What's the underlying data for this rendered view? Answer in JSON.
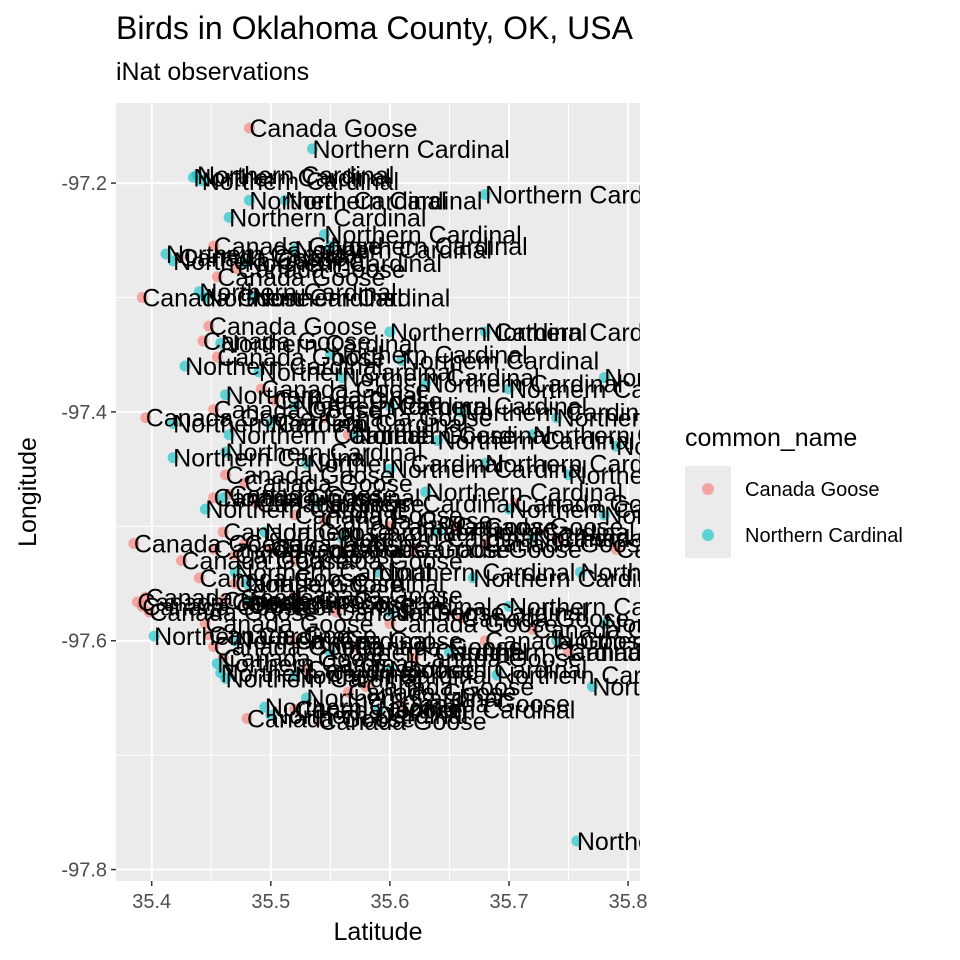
{
  "chart_data": {
    "type": "scatter",
    "title": "Birds in Oklahoma County, OK, USA",
    "subtitle": "iNat observations",
    "xlabel": "Latitude",
    "ylabel": "Longitude",
    "xlim": [
      35.37,
      35.81
    ],
    "ylim": [
      -97.81,
      -97.13
    ],
    "x_ticks": [
      "35.4",
      "35.5",
      "35.6",
      "35.7",
      "35.8"
    ],
    "x_tick_values": [
      35.4,
      35.5,
      35.6,
      35.7,
      35.8
    ],
    "y_ticks": [
      "-97.2",
      "-97.4",
      "-97.6",
      "-97.8"
    ],
    "y_tick_values": [
      -97.2,
      -97.4,
      -97.6,
      -97.8
    ],
    "grid": true,
    "legend": {
      "title": "common_name",
      "placement": "right",
      "entries": [
        {
          "name": "Canada Goose",
          "color": "#F8766D"
        },
        {
          "name": "Northern Cardinal",
          "color": "#00BFC4"
        }
      ]
    },
    "point_label_field": "common_name",
    "series": [
      {
        "name": "Canada Goose",
        "color": "#F8766D",
        "points": [
          [
            35.482,
            -97.152
          ],
          [
            35.452,
            -97.255
          ],
          [
            35.472,
            -97.275
          ],
          [
            35.455,
            -97.282
          ],
          [
            35.423,
            -97.265
          ],
          [
            35.392,
            -97.3
          ],
          [
            35.448,
            -97.325
          ],
          [
            35.443,
            -97.338
          ],
          [
            35.455,
            -97.352
          ],
          [
            35.492,
            -97.38
          ],
          [
            35.503,
            -97.39
          ],
          [
            35.452,
            -97.398
          ],
          [
            35.395,
            -97.405
          ],
          [
            35.545,
            -97.405
          ],
          [
            35.565,
            -97.42
          ],
          [
            35.462,
            -97.455
          ],
          [
            35.478,
            -97.462
          ],
          [
            35.465,
            -97.472
          ],
          [
            35.488,
            -97.48
          ],
          [
            35.452,
            -97.475
          ],
          [
            35.52,
            -97.49
          ],
          [
            35.545,
            -97.495
          ],
          [
            35.6,
            -97.5
          ],
          [
            35.655,
            -97.5
          ],
          [
            35.705,
            -97.48
          ],
          [
            35.46,
            -97.505
          ],
          [
            35.478,
            -97.515
          ],
          [
            35.385,
            -97.515
          ],
          [
            35.452,
            -97.52
          ],
          [
            35.425,
            -97.53
          ],
          [
            35.47,
            -97.525
          ],
          [
            35.5,
            -97.52
          ],
          [
            35.52,
            -97.53
          ],
          [
            35.56,
            -97.52
          ],
          [
            35.62,
            -97.52
          ],
          [
            35.68,
            -97.515
          ],
          [
            35.74,
            -97.51
          ],
          [
            35.79,
            -97.52
          ],
          [
            35.44,
            -97.545
          ],
          [
            35.47,
            -97.55
          ],
          [
            35.52,
            -97.56
          ],
          [
            35.388,
            -97.566
          ],
          [
            35.392,
            -97.57
          ],
          [
            35.395,
            -97.562
          ],
          [
            35.398,
            -97.575
          ],
          [
            35.46,
            -97.565
          ],
          [
            35.48,
            -97.568
          ],
          [
            35.555,
            -97.575
          ],
          [
            35.6,
            -97.585
          ],
          [
            35.66,
            -97.58
          ],
          [
            35.72,
            -97.59
          ],
          [
            35.445,
            -97.585
          ],
          [
            35.448,
            -97.595
          ],
          [
            35.452,
            -97.605
          ],
          [
            35.46,
            -97.615
          ],
          [
            35.52,
            -97.6
          ],
          [
            35.57,
            -97.605
          ],
          [
            35.62,
            -97.615
          ],
          [
            35.68,
            -97.6
          ],
          [
            35.75,
            -97.61
          ],
          [
            35.53,
            -97.625
          ],
          [
            35.58,
            -97.64
          ],
          [
            35.565,
            -97.645
          ],
          [
            35.61,
            -97.655
          ],
          [
            35.52,
            -97.66
          ],
          [
            35.48,
            -97.668
          ],
          [
            35.54,
            -97.67
          ]
        ]
      },
      {
        "name": "Northern Cardinal",
        "color": "#00BFC4",
        "points": [
          [
            35.535,
            -97.17
          ],
          [
            35.438,
            -97.193
          ],
          [
            35.442,
            -97.198
          ],
          [
            35.435,
            -97.195
          ],
          [
            35.68,
            -97.21
          ],
          [
            35.482,
            -97.215
          ],
          [
            35.512,
            -97.215
          ],
          [
            35.465,
            -97.23
          ],
          [
            35.545,
            -97.245
          ],
          [
            35.412,
            -97.262
          ],
          [
            35.418,
            -97.268
          ],
          [
            35.478,
            -97.27
          ],
          [
            35.52,
            -97.258
          ],
          [
            35.55,
            -97.255
          ],
          [
            35.44,
            -97.295
          ],
          [
            35.445,
            -97.3
          ],
          [
            35.485,
            -97.3
          ],
          [
            35.6,
            -97.33
          ],
          [
            35.68,
            -97.33
          ],
          [
            35.458,
            -97.34
          ],
          [
            35.55,
            -97.35
          ],
          [
            35.61,
            -97.355
          ],
          [
            35.428,
            -97.36
          ],
          [
            35.49,
            -97.365
          ],
          [
            35.56,
            -97.37
          ],
          [
            35.63,
            -97.375
          ],
          [
            35.7,
            -97.38
          ],
          [
            35.78,
            -97.37
          ],
          [
            35.462,
            -97.385
          ],
          [
            35.52,
            -97.395
          ],
          [
            35.6,
            -97.395
          ],
          [
            35.66,
            -97.4
          ],
          [
            35.74,
            -97.405
          ],
          [
            35.418,
            -97.41
          ],
          [
            35.5,
            -97.41
          ],
          [
            35.57,
            -97.42
          ],
          [
            35.64,
            -97.425
          ],
          [
            35.72,
            -97.42
          ],
          [
            35.79,
            -97.43
          ],
          [
            35.465,
            -97.42
          ],
          [
            35.462,
            -97.435
          ],
          [
            35.418,
            -97.44
          ],
          [
            35.53,
            -97.445
          ],
          [
            35.6,
            -97.45
          ],
          [
            35.68,
            -97.445
          ],
          [
            35.75,
            -97.455
          ],
          [
            35.46,
            -97.475
          ],
          [
            35.54,
            -97.48
          ],
          [
            35.63,
            -97.47
          ],
          [
            35.7,
            -97.485
          ],
          [
            35.78,
            -97.49
          ],
          [
            35.445,
            -97.485
          ],
          [
            35.495,
            -97.505
          ],
          [
            35.56,
            -97.51
          ],
          [
            35.64,
            -97.505
          ],
          [
            35.72,
            -97.51
          ],
          [
            35.47,
            -97.54
          ],
          [
            35.59,
            -97.54
          ],
          [
            35.67,
            -97.545
          ],
          [
            35.76,
            -97.54
          ],
          [
            35.48,
            -97.55
          ],
          [
            35.482,
            -97.565
          ],
          [
            35.52,
            -97.57
          ],
          [
            35.6,
            -97.575
          ],
          [
            35.7,
            -97.57
          ],
          [
            35.78,
            -97.585
          ],
          [
            35.402,
            -97.596
          ],
          [
            35.47,
            -97.6
          ],
          [
            35.55,
            -97.61
          ],
          [
            35.65,
            -97.61
          ],
          [
            35.74,
            -97.6
          ],
          [
            35.455,
            -97.62
          ],
          [
            35.458,
            -97.628
          ],
          [
            35.462,
            -97.633
          ],
          [
            35.52,
            -97.63
          ],
          [
            35.6,
            -97.625
          ],
          [
            35.69,
            -97.63
          ],
          [
            35.77,
            -97.64
          ],
          [
            35.495,
            -97.658
          ],
          [
            35.5,
            -97.665
          ],
          [
            35.53,
            -97.65
          ],
          [
            35.59,
            -97.66
          ],
          [
            35.757,
            -97.775
          ]
        ]
      }
    ]
  }
}
